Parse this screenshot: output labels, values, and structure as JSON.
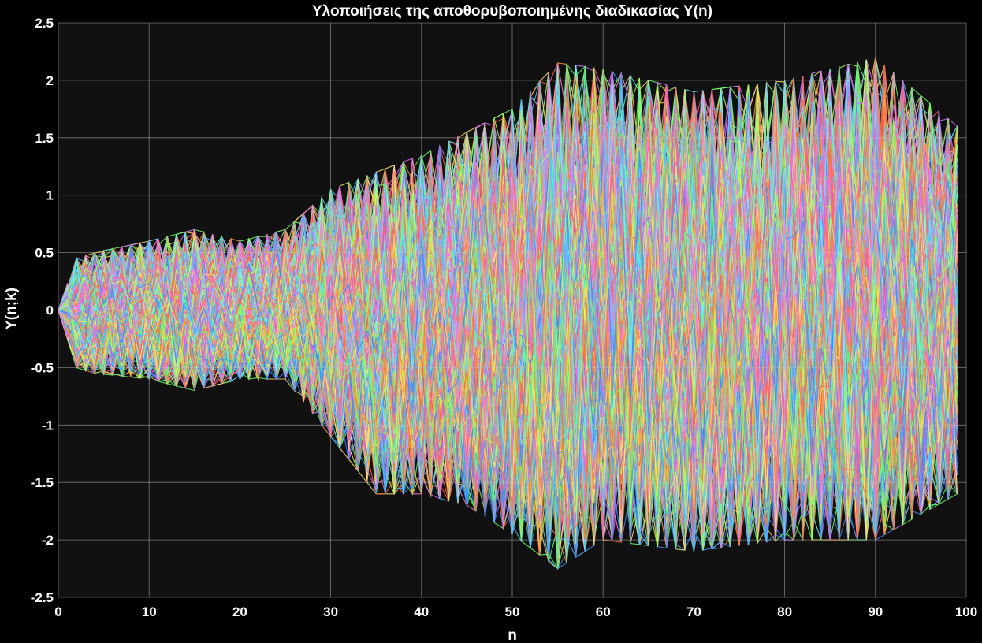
{
  "chart_data": {
    "type": "line",
    "title": "Υλοποιήσεις της αποθορυβοποιημένης διαδικασίας Y(n)",
    "xlabel": "n",
    "ylabel": "Y(n;k)",
    "xlim": [
      0,
      100
    ],
    "ylim": [
      -2.5,
      2.5
    ],
    "x_ticks": [
      0,
      10,
      20,
      30,
      40,
      50,
      60,
      70,
      80,
      90,
      100
    ],
    "y_ticks": [
      -2.5,
      -2,
      -1.5,
      -1,
      -0.5,
      0,
      0.5,
      1,
      1.5,
      2,
      2.5
    ],
    "x_tick_labels": [
      "0",
      "10",
      "20",
      "30",
      "40",
      "50",
      "60",
      "70",
      "80",
      "90",
      "100"
    ],
    "y_tick_labels": [
      "-2.5",
      "-2",
      "-1.5",
      "-1",
      "-0.5",
      "0",
      "0.5",
      "1",
      "1.5",
      "2",
      "2.5"
    ],
    "grid": true,
    "background_color": "#111111",
    "grid_color": "#bdbdbd",
    "series_colors": [
      "#4dc3ff",
      "#ff6b35",
      "#ffe066",
      "#d36bff",
      "#66ff66",
      "#5cf2ff",
      "#ff5c8a",
      "#3d8bff",
      "#ff9a3d",
      "#b2ff59",
      "#ff7ae0"
    ],
    "n_start": 0,
    "n_end": 99,
    "envelope": {
      "n": [
        0,
        2,
        4,
        10,
        15,
        20,
        25,
        30,
        35,
        40,
        45,
        50,
        55,
        60,
        70,
        80,
        90,
        99
      ],
      "upper": [
        0,
        0.45,
        0.5,
        0.6,
        0.7,
        0.6,
        0.7,
        1.05,
        1.2,
        1.35,
        1.55,
        1.75,
        2.15,
        2.1,
        1.9,
        2.0,
        2.2,
        1.6
      ],
      "lower": [
        0,
        -0.5,
        -0.55,
        -0.6,
        -0.7,
        -0.6,
        -0.6,
        -1.1,
        -1.6,
        -1.6,
        -1.7,
        -1.95,
        -2.25,
        -2.0,
        -2.1,
        -2.0,
        -2.0,
        -1.6
      ]
    }
  }
}
